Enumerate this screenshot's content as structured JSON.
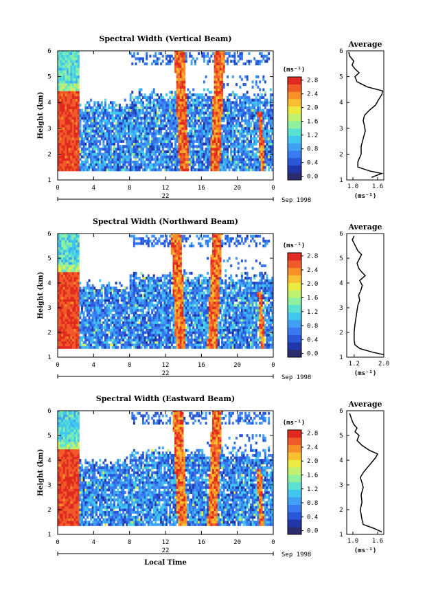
{
  "chart_data": [
    {
      "type": "heatmap",
      "title": "Spectral Width (Vertical Beam)",
      "ylabel": "Height (km)",
      "xlabel": "",
      "ylim": [
        1,
        6
      ],
      "xlim": [
        0,
        24
      ],
      "x_ticks": [
        "0",
        "4",
        "8",
        "12",
        "16",
        "20",
        "0"
      ],
      "y_ticks": [
        "1",
        "2",
        "3",
        "4",
        "5",
        "6"
      ],
      "date_day": "22",
      "date_label": "Sep 1998",
      "colorbar": {
        "unit_label": "(ms⁻¹)",
        "ticks": [
          "2.8",
          "2.4",
          "2.0",
          "1.6",
          "1.2",
          "0.8",
          "0.4",
          "0.0"
        ],
        "range": [
          0,
          3.0
        ]
      },
      "average": {
        "title": "Average",
        "xlabel": "(ms⁻¹)",
        "x_ticks": [
          "1.0",
          "1.6"
        ],
        "x_tick_values": [
          1.0,
          1.6
        ],
        "xlim": [
          0.85,
          1.75
        ],
        "heights": [
          1.1,
          1.25,
          1.35,
          1.5,
          1.7,
          2.0,
          2.3,
          2.6,
          2.9,
          3.1,
          3.3,
          3.5,
          3.7,
          3.9,
          4.1,
          4.3,
          4.45,
          4.6,
          4.8,
          5.0,
          5.15,
          5.3,
          5.45,
          5.6,
          5.8,
          5.95
        ],
        "values": [
          1.45,
          1.7,
          1.4,
          1.12,
          1.12,
          1.2,
          1.2,
          1.25,
          1.3,
          1.28,
          1.25,
          1.28,
          1.4,
          1.55,
          1.62,
          1.7,
          1.72,
          1.35,
          1.1,
          1.05,
          1.15,
          1.05,
          0.98,
          1.02,
          0.92,
          0.9
        ]
      }
    },
    {
      "type": "heatmap",
      "title": "Spectral Width (Northward Beam)",
      "ylabel": "Height (km)",
      "xlabel": "",
      "ylim": [
        1,
        6
      ],
      "xlim": [
        0,
        24
      ],
      "x_ticks": [
        "0",
        "4",
        "8",
        "12",
        "16",
        "20",
        "0"
      ],
      "y_ticks": [
        "1",
        "2",
        "3",
        "4",
        "5",
        "6"
      ],
      "date_day": "22",
      "date_label": "Sep 1998",
      "colorbar": {
        "unit_label": "(ms⁻¹)",
        "ticks": [
          "2.8",
          "2.4",
          "2.0",
          "1.6",
          "1.2",
          "0.8",
          "0.4",
          "0.0"
        ],
        "range": [
          0,
          3.0
        ]
      },
      "average": {
        "title": "Average",
        "xlabel": "(ms⁻¹)",
        "x_ticks": [
          "1.2",
          "2.0"
        ],
        "x_tick_values": [
          1.2,
          2.0
        ],
        "xlim": [
          1.0,
          2.0
        ],
        "heights": [
          1.1,
          1.2,
          1.35,
          1.5,
          1.7,
          2.0,
          2.3,
          2.6,
          2.9,
          3.1,
          3.3,
          3.5,
          3.7,
          3.9,
          4.1,
          4.3,
          4.45,
          4.6,
          4.8,
          5.0,
          5.15,
          5.3,
          5.45,
          5.6,
          5.75,
          5.9
        ],
        "values": [
          2.0,
          1.7,
          1.35,
          1.22,
          1.2,
          1.2,
          1.22,
          1.25,
          1.28,
          1.3,
          1.35,
          1.32,
          1.38,
          1.42,
          1.35,
          1.5,
          1.4,
          1.32,
          1.28,
          1.35,
          1.4,
          1.3,
          1.25,
          1.2,
          1.15,
          1.2
        ]
      }
    },
    {
      "type": "heatmap",
      "title": "Spectral Width (Eastward Beam)",
      "ylabel": "Height (km)",
      "xlabel": "Local Time",
      "ylim": [
        1,
        6
      ],
      "xlim": [
        0,
        24
      ],
      "x_ticks": [
        "0",
        "4",
        "8",
        "12",
        "16",
        "20",
        "0"
      ],
      "y_ticks": [
        "1",
        "2",
        "3",
        "4",
        "5",
        "6"
      ],
      "date_day": "22",
      "date_label": "Sep 1998",
      "colorbar": {
        "unit_label": "(ms⁻¹)",
        "ticks": [
          "2.8",
          "2.4",
          "2.0",
          "1.6",
          "1.2",
          "0.8",
          "0.4",
          "0.0"
        ],
        "range": [
          0,
          3.0
        ]
      },
      "average": {
        "title": "Average",
        "xlabel": "(ms⁻¹)",
        "x_ticks": [
          "1.0",
          "1.6"
        ],
        "x_tick_values": [
          1.0,
          1.6
        ],
        "xlim": [
          0.85,
          1.75
        ],
        "heights": [
          1.1,
          1.25,
          1.4,
          1.6,
          1.8,
          2.0,
          2.3,
          2.6,
          2.9,
          3.1,
          3.3,
          3.5,
          3.7,
          3.9,
          4.1,
          4.25,
          4.4,
          4.6,
          4.8,
          5.0,
          5.15,
          5.3,
          5.45,
          5.6,
          5.75,
          5.9
        ],
        "values": [
          1.7,
          1.5,
          1.25,
          1.22,
          1.2,
          1.18,
          1.22,
          1.2,
          1.25,
          1.22,
          1.18,
          1.25,
          1.35,
          1.45,
          1.55,
          1.6,
          1.4,
          1.22,
          1.1,
          1.15,
          1.05,
          1.1,
          1.02,
          0.98,
          0.95,
          0.92
        ]
      }
    }
  ]
}
